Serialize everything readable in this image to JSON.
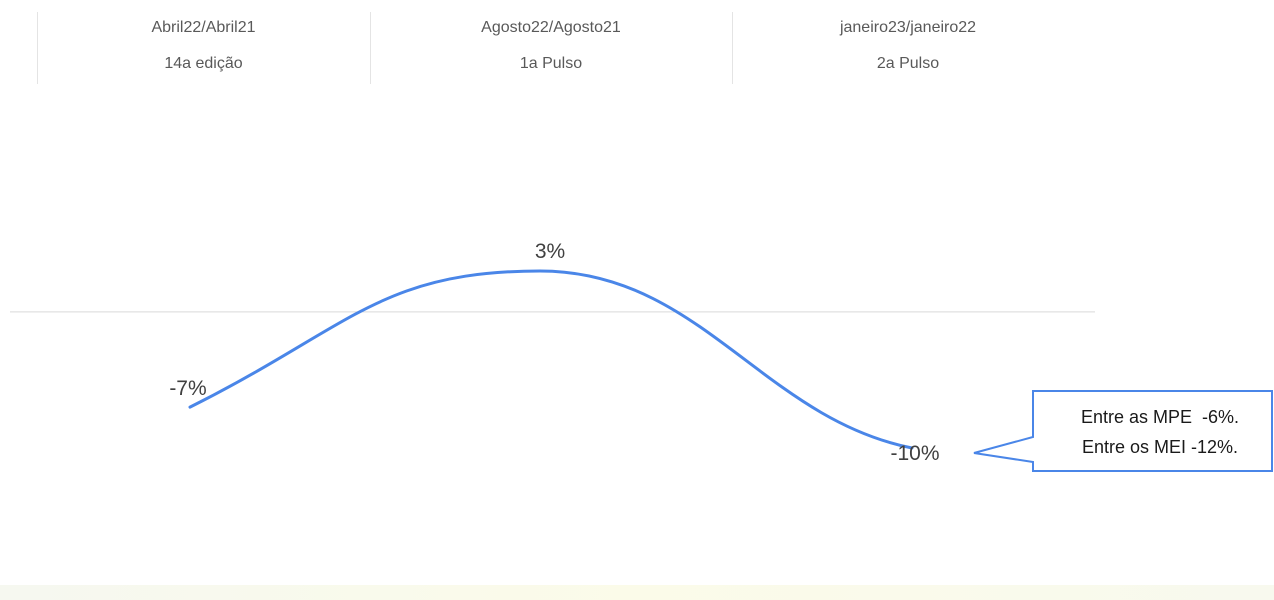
{
  "periods": [
    {
      "label": "Abril22/Abril21",
      "edition": "14a edição"
    },
    {
      "label": "Agosto22/Agosto21",
      "edition": "1a Pulso"
    },
    {
      "label": "janeiro23/janeiro22",
      "edition": "2a Pulso"
    }
  ],
  "chart_data": {
    "type": "line",
    "categories": [
      "Abril22/Abril21",
      "Agosto22/Agosto21",
      "janeiro23/janeiro22"
    ],
    "series": [
      {
        "values": [
          -7,
          3,
          -10
        ],
        "color": "#4a86e8"
      }
    ],
    "data_labels": [
      "-7%",
      "3%",
      "-10%"
    ],
    "ylim": [
      -15,
      8
    ],
    "baseline": 0,
    "grid": false,
    "annotation": {
      "lines": [
        "Entre as MPE  -6%.",
        "Entre os MEI -12%."
      ],
      "border_color": "#4a86e8"
    }
  },
  "colors": {
    "line": "#4a86e8",
    "zero_line": "#d9d9d9",
    "text": "#404040"
  }
}
